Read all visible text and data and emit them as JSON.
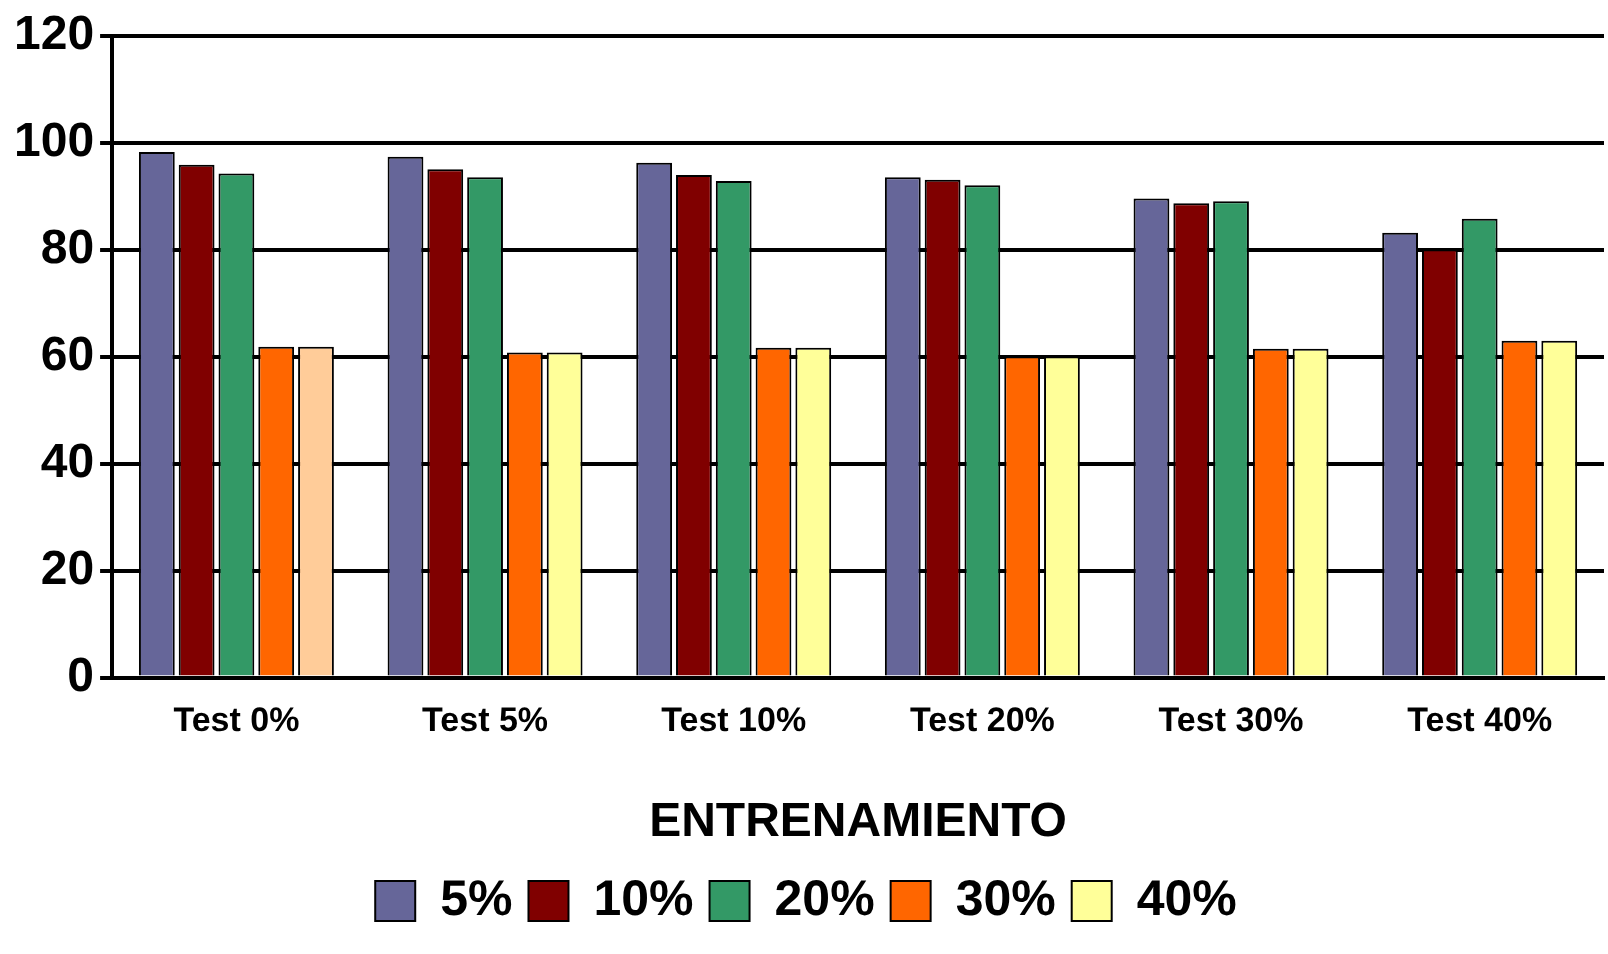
{
  "chart_data": {
    "type": "bar",
    "categories": [
      "Test 0%",
      "Test 5%",
      "Test 10%",
      "Test 20%",
      "Test 30%",
      "Test 40%"
    ],
    "xlabel": "ENTRENAMIENTO",
    "series": [
      {
        "name": "5%",
        "color": "#666699",
        "values": [
          98.3,
          97.4,
          96.3,
          93.6,
          89.6,
          83.2
        ]
      },
      {
        "name": "10%",
        "color": "#800000",
        "values": [
          95.9,
          95.1,
          94,
          93.1,
          88.7,
          80.1
        ]
      },
      {
        "name": "20%",
        "color": "#339966",
        "values": [
          94.3,
          93.6,
          92.9,
          92.1,
          89.1,
          85.8
        ]
      },
      {
        "name": "30%",
        "color": "#ff6600",
        "values": [
          61.9,
          60.8,
          61.7,
          60.1,
          61.5,
          63
        ]
      },
      {
        "name": "40%",
        "color": "#ffff99",
        "colors": [
          "#ffcc99",
          "#ffff99",
          "#ffff99",
          "#ffff99",
          "#ffff99",
          "#ffff99"
        ],
        "values": [
          61.9,
          60.8,
          61.7,
          60.1,
          61.5,
          63
        ]
      }
    ],
    "ylim": [
      0,
      120
    ],
    "yticks": [
      0,
      20,
      40,
      60,
      80,
      100,
      120
    ],
    "grid": "y",
    "legend": "bottom"
  }
}
